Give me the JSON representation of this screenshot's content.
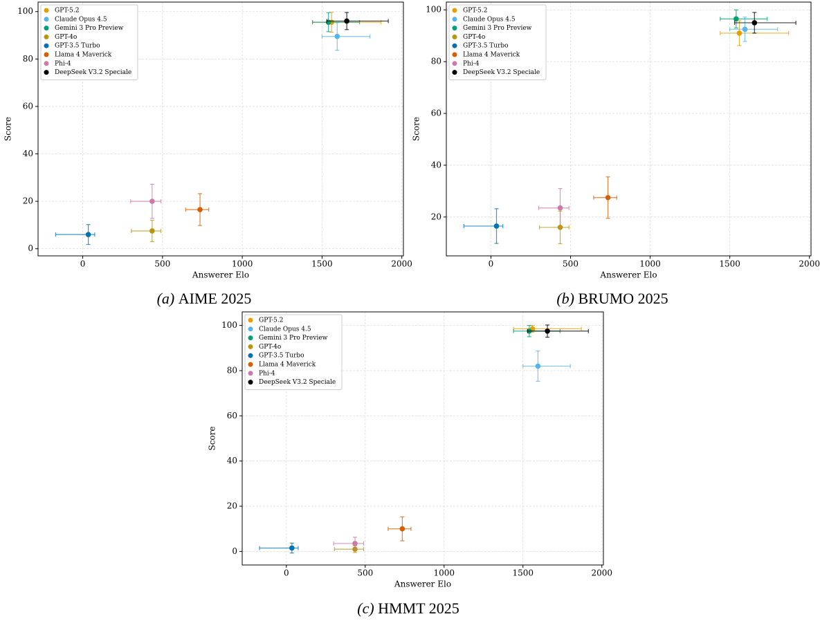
{
  "chart_data": [
    {
      "type": "scatter",
      "label": "(a)",
      "title": "AIME 2025",
      "x_label": "Answerer Elo",
      "y_label": "Score",
      "xlim": [
        -280,
        2010
      ],
      "ylim": [
        -3,
        104
      ],
      "xticks": [
        0,
        500,
        1000,
        1500,
        2000
      ],
      "yticks": [
        0,
        20,
        40,
        60,
        80,
        100
      ],
      "grid": true,
      "legend": "upper left",
      "series": [
        {
          "name": "GPT-5.2",
          "color": "#e69f00",
          "x": 1560,
          "y": 95.5,
          "xerr": [
            120,
            310
          ],
          "yerr": 4.2
        },
        {
          "name": "Claude Opus 4.5",
          "color": "#56b4e9",
          "x": 1595,
          "y": 89.5,
          "xerr": [
            95,
            205
          ],
          "yerr": 5.8
        },
        {
          "name": "Gemini 3 Pro Preview",
          "color": "#009e73",
          "x": 1540,
          "y": 95.5,
          "xerr": [
            100,
            195
          ],
          "yerr": 4
        },
        {
          "name": "GPT-4o",
          "color": "#b8960b",
          "x": 435,
          "y": 7.5,
          "xerr": [
            130,
            55
          ],
          "yerr": 4.5
        },
        {
          "name": "GPT-3.5 Turbo",
          "color": "#0072b2",
          "x": 35,
          "y": 6,
          "xerr": [
            205,
            40
          ],
          "yerr": 4.2
        },
        {
          "name": "Llama 4 Maverick",
          "color": "#d55e00",
          "x": 735,
          "y": 16.5,
          "xerr": [
            90,
            55
          ],
          "yerr": 6.7
        },
        {
          "name": "Phi-4",
          "color": "#cc79a7",
          "x": 435,
          "y": 20,
          "xerr": [
            135,
            55
          ],
          "yerr": 7.2
        },
        {
          "name": "DeepSeek V3.2 Speciale",
          "color": "#000000",
          "x": 1655,
          "y": 96,
          "xerr": [
            125,
            260
          ],
          "yerr": 3.6
        }
      ]
    },
    {
      "type": "scatter",
      "label": "(b)",
      "title": "BRUMO 2025",
      "x_label": "Answerer Elo",
      "y_label": "Score",
      "xlim": [
        -280,
        2010
      ],
      "ylim": [
        5,
        103
      ],
      "xticks": [
        0,
        500,
        1000,
        1500,
        2000
      ],
      "yticks": [
        20,
        40,
        60,
        80,
        100
      ],
      "grid": true,
      "legend": "upper left",
      "series": [
        {
          "name": "GPT-5.2",
          "color": "#e69f00",
          "x": 1560,
          "y": 91,
          "xerr": [
            120,
            310
          ],
          "yerr": 4.8
        },
        {
          "name": "Claude Opus 4.5",
          "color": "#56b4e9",
          "x": 1595,
          "y": 92.5,
          "xerr": [
            95,
            205
          ],
          "yerr": 4.7
        },
        {
          "name": "Gemini 3 Pro Preview",
          "color": "#009e73",
          "x": 1540,
          "y": 96.5,
          "xerr": [
            100,
            195
          ],
          "yerr": 3.5
        },
        {
          "name": "GPT-4o",
          "color": "#b8960b",
          "x": 435,
          "y": 16,
          "xerr": [
            130,
            55
          ],
          "yerr": 6.3
        },
        {
          "name": "GPT-3.5 Turbo",
          "color": "#0072b2",
          "x": 35,
          "y": 16.5,
          "xerr": [
            205,
            40
          ],
          "yerr": 6.7
        },
        {
          "name": "Llama 4 Maverick",
          "color": "#d55e00",
          "x": 735,
          "y": 27.5,
          "xerr": [
            90,
            55
          ],
          "yerr": 8
        },
        {
          "name": "Phi-4",
          "color": "#cc79a7",
          "x": 435,
          "y": 23.5,
          "xerr": [
            135,
            55
          ],
          "yerr": 7.5
        },
        {
          "name": "DeepSeek V3.2 Speciale",
          "color": "#000000",
          "x": 1655,
          "y": 95,
          "xerr": [
            125,
            260
          ],
          "yerr": 4
        }
      ]
    },
    {
      "type": "scatter",
      "label": "(c)",
      "title": "HMMT 2025",
      "x_label": "Answerer Elo",
      "y_label": "Score",
      "xlim": [
        -280,
        2010
      ],
      "ylim": [
        -6,
        106
      ],
      "xticks": [
        0,
        500,
        1000,
        1500,
        2000
      ],
      "yticks": [
        0,
        20,
        40,
        60,
        80,
        100
      ],
      "grid": true,
      "legend": "upper left",
      "series": [
        {
          "name": "GPT-5.2",
          "color": "#e69f00",
          "x": 1560,
          "y": 98.5,
          "xerr": [
            120,
            310
          ],
          "yerr": 1.5
        },
        {
          "name": "Claude Opus 4.5",
          "color": "#56b4e9",
          "x": 1595,
          "y": 82,
          "xerr": [
            95,
            205
          ],
          "yerr": 6.7
        },
        {
          "name": "Gemini 3 Pro Preview",
          "color": "#009e73",
          "x": 1540,
          "y": 97.5,
          "xerr": [
            100,
            195
          ],
          "yerr": 2.5
        },
        {
          "name": "GPT-4o",
          "color": "#b8960b",
          "x": 435,
          "y": 1,
          "xerr": [
            130,
            55
          ],
          "yerr": 1.5
        },
        {
          "name": "GPT-3.5 Turbo",
          "color": "#0072b2",
          "x": 35,
          "y": 1.5,
          "xerr": [
            205,
            40
          ],
          "yerr": 2.2
        },
        {
          "name": "Llama 4 Maverick",
          "color": "#d55e00",
          "x": 735,
          "y": 10,
          "xerr": [
            90,
            55
          ],
          "yerr": 5.3
        },
        {
          "name": "Phi-4",
          "color": "#cc79a7",
          "x": 435,
          "y": 3.5,
          "xerr": [
            135,
            55
          ],
          "yerr": 2.8
        },
        {
          "name": "DeepSeek V3.2 Speciale",
          "color": "#000000",
          "x": 1655,
          "y": 97.5,
          "xerr": [
            125,
            260
          ],
          "yerr": 2.7
        }
      ]
    }
  ]
}
